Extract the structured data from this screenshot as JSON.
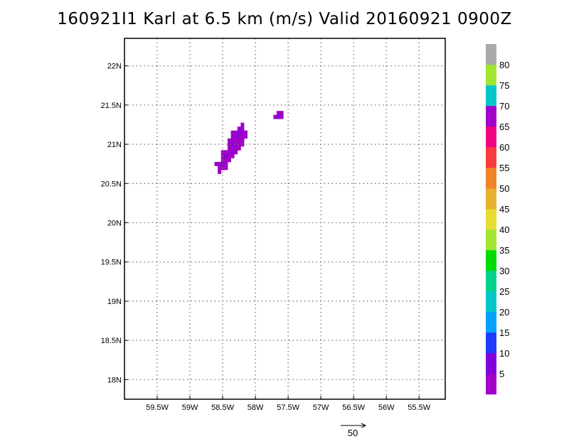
{
  "chart_data": {
    "type": "heatmap",
    "title": "160921I1 Karl at 6.5 km (m/s) Valid 20160921 0900Z",
    "xlabel": "",
    "ylabel": "",
    "xlim": [
      -60.0,
      -55.1
    ],
    "ylim": [
      17.75,
      22.35
    ],
    "grid": true,
    "x_ticks": [
      {
        "value": -59.5,
        "label": "59.5W"
      },
      {
        "value": -59.0,
        "label": "59W"
      },
      {
        "value": -58.5,
        "label": "58.5W"
      },
      {
        "value": -58.0,
        "label": "58W"
      },
      {
        "value": -57.5,
        "label": "57.5W"
      },
      {
        "value": -57.0,
        "label": "57W"
      },
      {
        "value": -56.5,
        "label": "56.5W"
      },
      {
        "value": -56.0,
        "label": "56W"
      },
      {
        "value": -55.5,
        "label": "55.5W"
      }
    ],
    "y_ticks": [
      {
        "value": 18.0,
        "label": "18N"
      },
      {
        "value": 18.5,
        "label": "18.5N"
      },
      {
        "value": 19.0,
        "label": "19N"
      },
      {
        "value": 19.5,
        "label": "19.5N"
      },
      {
        "value": 20.0,
        "label": "20N"
      },
      {
        "value": 20.5,
        "label": "20.5N"
      },
      {
        "value": 21.0,
        "label": "21N"
      },
      {
        "value": 21.5,
        "label": "21.5N"
      },
      {
        "value": 22.0,
        "label": "22N"
      }
    ],
    "colorbar": {
      "levels": [
        0,
        5,
        10,
        15,
        20,
        25,
        30,
        35,
        40,
        45,
        50,
        55,
        60,
        65,
        70,
        75,
        80,
        85
      ],
      "labels": [
        "5",
        "10",
        "15",
        "20",
        "25",
        "30",
        "35",
        "40",
        "45",
        "50",
        "55",
        "60",
        "65",
        "70",
        "75",
        "80"
      ],
      "colors": [
        "#a000c8",
        "#8200dc",
        "#1e3cff",
        "#00a0ff",
        "#00c8c8",
        "#00d28c",
        "#00dc00",
        "#a0e632",
        "#e6dc32",
        "#e6af2d",
        "#f08228",
        "#fa3c3c",
        "#f00082",
        "#a000c8",
        "#00c8c8",
        "#a0e632",
        "#aaaaaa"
      ]
    },
    "cell_size_deg": 0.05,
    "cells": [
      {
        "lon": -57.65,
        "lat": 21.4,
        "v": 3
      },
      {
        "lon": -57.6,
        "lat": 21.4,
        "v": 3
      },
      {
        "lon": -57.7,
        "lat": 21.35,
        "v": 3
      },
      {
        "lon": -57.65,
        "lat": 21.35,
        "v": 7
      },
      {
        "lon": -57.6,
        "lat": 21.35,
        "v": 3
      },
      {
        "lon": -58.2,
        "lat": 21.25,
        "v": 3
      },
      {
        "lon": -58.25,
        "lat": 21.2,
        "v": 3
      },
      {
        "lon": -58.2,
        "lat": 21.2,
        "v": 3
      },
      {
        "lon": -58.35,
        "lat": 21.15,
        "v": 3
      },
      {
        "lon": -58.3,
        "lat": 21.15,
        "v": 3
      },
      {
        "lon": -58.25,
        "lat": 21.15,
        "v": 7
      },
      {
        "lon": -58.2,
        "lat": 21.15,
        "v": 3
      },
      {
        "lon": -58.15,
        "lat": 21.15,
        "v": 3
      },
      {
        "lon": -58.35,
        "lat": 21.1,
        "v": 3
      },
      {
        "lon": -58.3,
        "lat": 21.1,
        "v": 7
      },
      {
        "lon": -58.25,
        "lat": 21.1,
        "v": 3
      },
      {
        "lon": -58.2,
        "lat": 21.1,
        "v": 3
      },
      {
        "lon": -58.15,
        "lat": 21.1,
        "v": 3
      },
      {
        "lon": -58.4,
        "lat": 21.05,
        "v": 3
      },
      {
        "lon": -58.35,
        "lat": 21.05,
        "v": 3
      },
      {
        "lon": -58.3,
        "lat": 21.05,
        "v": 3
      },
      {
        "lon": -58.25,
        "lat": 21.05,
        "v": 3
      },
      {
        "lon": -58.2,
        "lat": 21.05,
        "v": 3
      },
      {
        "lon": -58.4,
        "lat": 21.0,
        "v": 3
      },
      {
        "lon": -58.35,
        "lat": 21.0,
        "v": 7
      },
      {
        "lon": -58.3,
        "lat": 21.0,
        "v": 3
      },
      {
        "lon": -58.25,
        "lat": 21.0,
        "v": 3
      },
      {
        "lon": -58.2,
        "lat": 21.0,
        "v": 3
      },
      {
        "lon": -58.4,
        "lat": 20.95,
        "v": 3
      },
      {
        "lon": -58.35,
        "lat": 20.95,
        "v": 3
      },
      {
        "lon": -58.3,
        "lat": 20.95,
        "v": 3
      },
      {
        "lon": -58.25,
        "lat": 20.95,
        "v": 3
      },
      {
        "lon": -58.5,
        "lat": 20.9,
        "v": 3
      },
      {
        "lon": -58.45,
        "lat": 20.9,
        "v": 3
      },
      {
        "lon": -58.4,
        "lat": 20.9,
        "v": 3
      },
      {
        "lon": -58.35,
        "lat": 20.9,
        "v": 7
      },
      {
        "lon": -58.3,
        "lat": 20.9,
        "v": 3
      },
      {
        "lon": -58.5,
        "lat": 20.85,
        "v": 3
      },
      {
        "lon": -58.45,
        "lat": 20.85,
        "v": 7
      },
      {
        "lon": -58.4,
        "lat": 20.85,
        "v": 3
      },
      {
        "lon": -58.35,
        "lat": 20.85,
        "v": 3
      },
      {
        "lon": -58.5,
        "lat": 20.8,
        "v": 3
      },
      {
        "lon": -58.45,
        "lat": 20.8,
        "v": 3
      },
      {
        "lon": -58.4,
        "lat": 20.8,
        "v": 3
      },
      {
        "lon": -58.6,
        "lat": 20.75,
        "v": 3
      },
      {
        "lon": -58.55,
        "lat": 20.75,
        "v": 3
      },
      {
        "lon": -58.5,
        "lat": 20.75,
        "v": 7
      },
      {
        "lon": -58.45,
        "lat": 20.75,
        "v": 3
      },
      {
        "lon": -58.55,
        "lat": 20.7,
        "v": 3
      },
      {
        "lon": -58.5,
        "lat": 20.7,
        "v": 3
      },
      {
        "lon": -58.45,
        "lat": 20.7,
        "v": 3
      },
      {
        "lon": -58.55,
        "lat": 20.65,
        "v": 3
      }
    ],
    "reference_vector": {
      "label": "50",
      "value": 50
    }
  }
}
